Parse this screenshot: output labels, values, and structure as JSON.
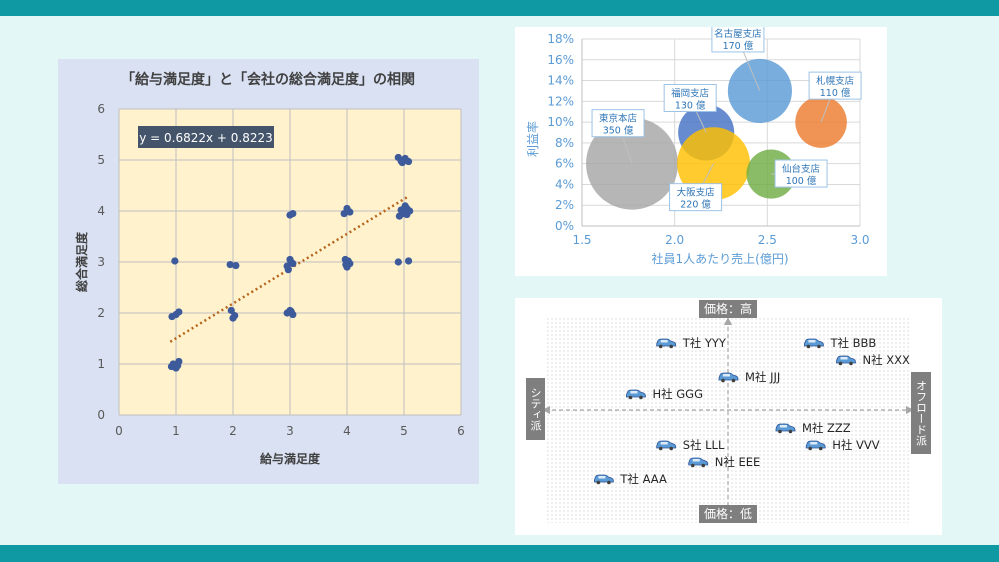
{
  "chart_data": [
    {
      "type": "scatter",
      "title": "「給与満足度」と「会社の総合満足度」の相関",
      "xlabel": "給与満足度",
      "ylabel": "総合満足度",
      "xlim": [
        0,
        6
      ],
      "ylim": [
        0,
        6
      ],
      "xticks": [
        "0",
        "1",
        "2",
        "3",
        "4",
        "5",
        "6"
      ],
      "yticks": [
        "0",
        "1",
        "2",
        "3",
        "4",
        "5",
        "6"
      ],
      "trendline": {
        "label": "y = 0.6822x + 0.8223",
        "slope": 0.6822,
        "intercept": 0.8223,
        "style": "dotted"
      },
      "grid": true,
      "colors": {
        "point": "#3d5a9b",
        "trend": "#b5651d",
        "plot_bg": "#fff2cc",
        "panel_bg": "#d9e1f2"
      },
      "points": [
        [
          0.92,
          0.95
        ],
        [
          0.95,
          1.0
        ],
        [
          1.0,
          0.92
        ],
        [
          1.05,
          1.05
        ],
        [
          1.03,
          0.97
        ],
        [
          0.93,
          1.93
        ],
        [
          1.0,
          1.97
        ],
        [
          1.05,
          2.02
        ],
        [
          0.98,
          3.02
        ],
        [
          1.95,
          2.95
        ],
        [
          2.05,
          2.93
        ],
        [
          1.97,
          2.05
        ],
        [
          2.03,
          1.95
        ],
        [
          2.0,
          1.9
        ],
        [
          2.95,
          2.0
        ],
        [
          3.0,
          2.05
        ],
        [
          3.05,
          1.97
        ],
        [
          3.02,
          2.03
        ],
        [
          2.95,
          2.92
        ],
        [
          3.0,
          3.05
        ],
        [
          3.05,
          2.97
        ],
        [
          3.02,
          3.0
        ],
        [
          2.97,
          2.85
        ],
        [
          3.0,
          3.92
        ],
        [
          3.05,
          3.95
        ],
        [
          3.95,
          3.95
        ],
        [
          4.0,
          4.05
        ],
        [
          4.05,
          3.98
        ],
        [
          3.98,
          2.95
        ],
        [
          4.02,
          3.02
        ],
        [
          4.05,
          2.97
        ],
        [
          3.97,
          3.05
        ],
        [
          4.0,
          2.9
        ],
        [
          4.9,
          5.05
        ],
        [
          4.95,
          4.98
        ],
        [
          5.02,
          5.03
        ],
        [
          5.08,
          4.97
        ],
        [
          4.97,
          4.95
        ],
        [
          4.95,
          4.02
        ],
        [
          5.0,
          3.95
        ],
        [
          5.05,
          4.05
        ],
        [
          5.1,
          4.0
        ],
        [
          4.92,
          3.9
        ],
        [
          5.05,
          3.93
        ],
        [
          5.02,
          4.1
        ],
        [
          4.9,
          3.0
        ],
        [
          5.08,
          3.02
        ]
      ]
    },
    {
      "type": "bubble",
      "xlabel": "社員1人あたり売上(億円)",
      "ylabel": "利益率",
      "xlim": [
        1.5,
        3.0
      ],
      "ylim": [
        0,
        18
      ],
      "xticks": [
        "1.5",
        "2.0",
        "2.5",
        "3.0"
      ],
      "yticks": [
        "0%",
        "2%",
        "4%",
        "6%",
        "8%",
        "10%",
        "12%",
        "14%",
        "16%",
        "18%"
      ],
      "series": [
        {
          "name": "東京本店",
          "value_label": "350 億",
          "x": 1.77,
          "y": 6.0,
          "size": 350,
          "color": "#a6a6a6"
        },
        {
          "name": "名古屋支店",
          "value_label": "170 億",
          "x": 2.46,
          "y": 13.0,
          "size": 170,
          "color": "#5b9bd5"
        },
        {
          "name": "福岡支店",
          "value_label": "130 億",
          "x": 2.17,
          "y": 9.0,
          "size": 130,
          "color": "#4472c4"
        },
        {
          "name": "大阪支店",
          "value_label": "220 億",
          "x": 2.21,
          "y": 6.0,
          "size": 220,
          "color": "#ffc000"
        },
        {
          "name": "札幌支店",
          "value_label": "110 億",
          "x": 2.79,
          "y": 10.0,
          "size": 110,
          "color": "#ed7d31"
        },
        {
          "name": "仙台支店",
          "value_label": "100 億",
          "x": 2.52,
          "y": 5.0,
          "size": 100,
          "color": "#70ad47"
        }
      ]
    },
    {
      "type": "positioning-map",
      "axis_labels": {
        "top": "価格：高",
        "bottom": "価格：低",
        "left": "シティ派",
        "right": "オフロード派"
      },
      "xlim": [
        -1,
        1
      ],
      "ylim": [
        -1,
        1
      ],
      "items": [
        {
          "label": "T社 YYY",
          "x": -0.35,
          "y": 0.68
        },
        {
          "label": "T社 BBB",
          "x": 0.48,
          "y": 0.68
        },
        {
          "label": "N社 XXX",
          "x": 0.66,
          "y": 0.51
        },
        {
          "label": "M社 JJJ",
          "x": 0.0,
          "y": 0.34
        },
        {
          "label": "H社 GGG",
          "x": -0.52,
          "y": 0.17
        },
        {
          "label": "M社 ZZZ",
          "x": 0.32,
          "y": -0.17
        },
        {
          "label": "S社 LLL",
          "x": -0.35,
          "y": -0.34
        },
        {
          "label": "H社 VVV",
          "x": 0.49,
          "y": -0.34
        },
        {
          "label": "N社 EEE",
          "x": -0.17,
          "y": -0.51
        },
        {
          "label": "T社 AAA",
          "x": -0.7,
          "y": -0.68
        }
      ]
    }
  ]
}
